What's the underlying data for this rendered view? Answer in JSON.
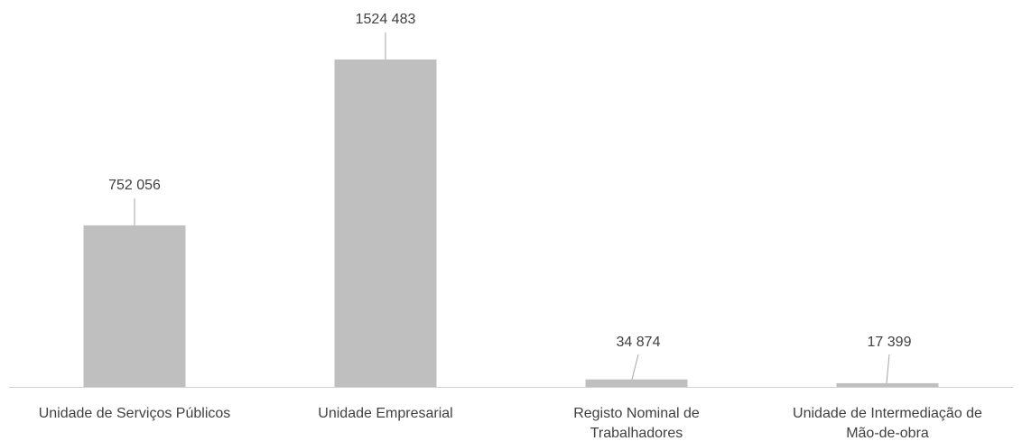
{
  "chart_data": {
    "type": "bar",
    "categories": [
      [
        "Unidade de Serviços Públicos"
      ],
      [
        "Unidade Empresarial"
      ],
      [
        "Registo Nominal de",
        "Trabalhadores"
      ],
      [
        "Unidade de Intermediação de",
        "Mão-de-obra"
      ]
    ],
    "values": [
      752056,
      1524483,
      34874,
      17399
    ],
    "data_labels": [
      "752 056",
      "1524 483",
      "34 874",
      "17 399"
    ],
    "bar_color": "#bfbfbf",
    "title": "",
    "xlabel": "",
    "ylabel": "",
    "ylim": [
      0,
      1524483
    ],
    "grid": false,
    "legend": "none"
  }
}
